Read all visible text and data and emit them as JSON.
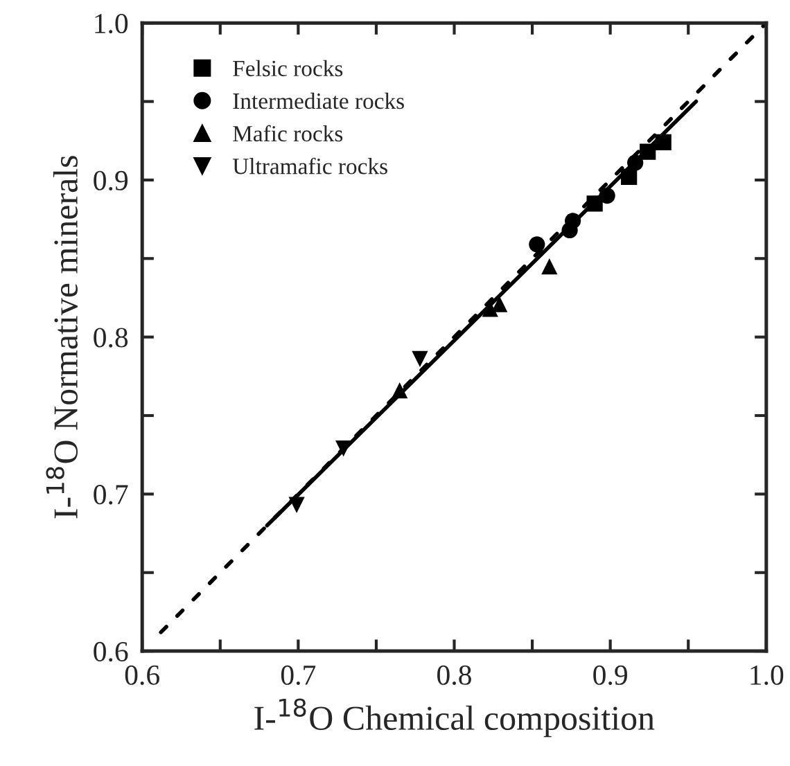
{
  "chart_data": {
    "type": "scatter",
    "xlabel": "I-$^{18}$O Chemical composition",
    "ylabel": "I-$^{18}$O Normative minerals",
    "xlim": [
      0.6,
      1.0
    ],
    "ylim": [
      0.6,
      1.0
    ],
    "xticks": [
      0.6,
      {
        "value": 0.65,
        "label": null
      },
      0.7,
      {
        "value": 0.75,
        "label": null
      },
      0.8,
      {
        "value": 0.85,
        "label": null
      },
      0.9,
      {
        "value": 0.95,
        "label": null
      },
      {
        "value": 1.0,
        "label": "1.0"
      }
    ],
    "yticks": [
      0.6,
      {
        "value": 0.65,
        "label": null
      },
      0.7,
      {
        "value": 0.75,
        "label": null
      },
      0.8,
      {
        "value": 0.85,
        "label": null
      },
      0.9,
      {
        "value": 0.95,
        "label": null
      },
      {
        "value": 1.0,
        "label": "1.0"
      }
    ],
    "grid": false,
    "legend": "top left",
    "series": [
      {
        "name": "Felsic rocks",
        "color": "#000000",
        "marker": "square",
        "x": [
          0.934,
          0.924,
          0.912,
          0.89
        ],
        "values": [
          0.924,
          0.918,
          0.902,
          0.885
        ]
      },
      {
        "name": "Intermediate rocks",
        "color": "#000000",
        "marker": "circle",
        "x": [
          0.916,
          0.898,
          0.876,
          0.874,
          0.853
        ],
        "values": [
          0.911,
          0.89,
          0.874,
          0.868,
          0.859
        ]
      },
      {
        "name": "Mafic rocks",
        "color": "#000000",
        "marker": "triangle",
        "x": [
          0.861,
          0.829,
          0.823,
          0.765
        ],
        "values": [
          0.845,
          0.821,
          0.818,
          0.766
        ]
      },
      {
        "name": "Ultramafic rocks",
        "color": "#000000",
        "marker": "triangle_down",
        "x": [
          0.778,
          0.729,
          0.699
        ],
        "values": [
          0.786,
          0.729,
          0.693
        ]
      },
      {
        "type": "line",
        "color": "#000000",
        "line_style": "solid",
        "marker": "none",
        "x": [
          0.68,
          0.955
        ],
        "values": [
          0.68,
          0.95
        ]
      },
      {
        "type": "line",
        "color": "#000000",
        "line_style": "dotted",
        "marker": "none",
        "x": [
          0.612,
          1.0
        ],
        "values": [
          0.612,
          1.0
        ]
      }
    ]
  }
}
